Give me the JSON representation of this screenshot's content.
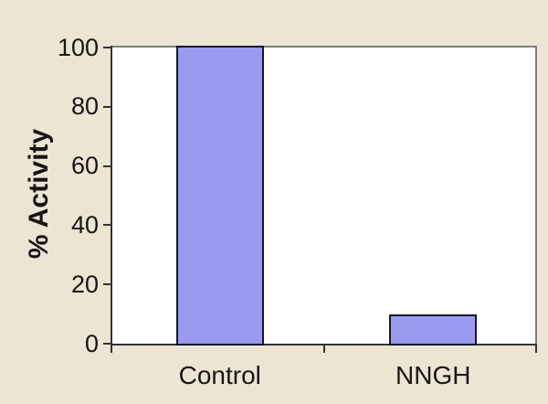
{
  "chart_data": {
    "type": "bar",
    "categories": [
      "Control",
      "NNGH"
    ],
    "values": [
      100,
      10
    ],
    "title": "",
    "xlabel": "",
    "ylabel": "% Activity",
    "ylim": [
      0,
      100
    ],
    "yticks": [
      0,
      20,
      40,
      60,
      80,
      100
    ],
    "grid": false,
    "legend": false,
    "colors": {
      "background": "#ECE5D3",
      "plot_background": "#FFFFFF",
      "bar_fill": "#9A9AF0",
      "bar_border": "#16162F",
      "axis_dark": "#333333",
      "frame_gray": "#7D7D7D",
      "text": "#161616"
    }
  }
}
